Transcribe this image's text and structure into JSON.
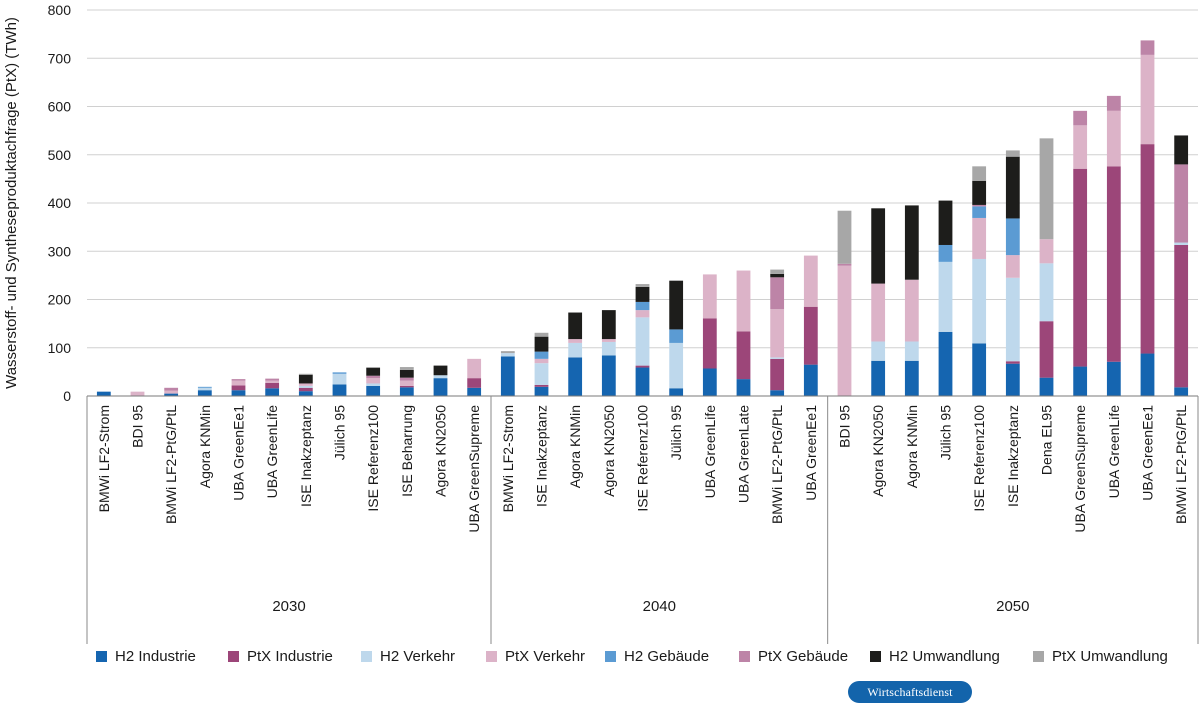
{
  "chart_data": {
    "type": "bar",
    "stacked": true,
    "ylabel": "Wasserstoff- und Syntheseproduktachfrage (PtX) (TWh)",
    "ylim": [
      0,
      800
    ],
    "yticks": [
      0,
      100,
      200,
      300,
      400,
      500,
      600,
      700,
      800
    ],
    "grid": true,
    "legend_position": "bottom",
    "series": [
      {
        "name": "H2 Industrie",
        "color": "#1565b0"
      },
      {
        "name": "PtX Industrie",
        "color": "#9c4679"
      },
      {
        "name": "H2 Verkehr",
        "color": "#bed8ec"
      },
      {
        "name": "PtX Verkehr",
        "color": "#dcb3c8"
      },
      {
        "name": "H2 Gebäude",
        "color": "#5b9bd3"
      },
      {
        "name": "PtX Gebäude",
        "color": "#bd84a7"
      },
      {
        "name": "H2 Umwandlung",
        "color": "#1d1d1b"
      },
      {
        "name": "PtX Umwandlung",
        "color": "#a7a7a7"
      }
    ],
    "groups": [
      {
        "label": "2030",
        "bars": [
          {
            "label": "BMWi LF2-Strom",
            "values": [
              9,
              0,
              0,
              0,
              0,
              0,
              0,
              0
            ]
          },
          {
            "label": "BDI 95",
            "values": [
              0,
              0,
              0,
              9,
              0,
              0,
              0,
              0
            ]
          },
          {
            "label": "BMWi LF2-PtG/PtL",
            "values": [
              5,
              0,
              0,
              6,
              0,
              6,
              0,
              0
            ]
          },
          {
            "label": "Agora KNMin",
            "values": [
              12,
              0,
              5,
              0,
              2,
              0,
              0,
              0
            ]
          },
          {
            "label": "UBA GreenEe1",
            "values": [
              12,
              10,
              0,
              10,
              0,
              3,
              0,
              0
            ]
          },
          {
            "label": "UBA GreenLife",
            "values": [
              16,
              11,
              0,
              5,
              0,
              4,
              0,
              0
            ]
          },
          {
            "label": "ISE Inakzeptanz",
            "values": [
              10,
              7,
              4,
              5,
              0,
              0,
              18,
              2
            ]
          },
          {
            "label": "Jülich 95",
            "values": [
              24,
              0,
              22,
              0,
              3,
              0,
              0,
              0
            ]
          },
          {
            "label": "ISE Referenz100",
            "values": [
              21,
              0,
              5,
              11,
              0,
              5,
              16,
              2
            ]
          },
          {
            "label": "ISE Beharrung",
            "values": [
              18,
              3,
              0,
              11,
              0,
              6,
              16,
              6
            ]
          },
          {
            "label": "Agora KN2050",
            "values": [
              37,
              0,
              6,
              0,
              0,
              0,
              20,
              0
            ]
          },
          {
            "label": "UBA GreenSupreme",
            "values": [
              17,
              20,
              0,
              40,
              0,
              0,
              0,
              0
            ]
          }
        ]
      },
      {
        "label": "2040",
        "bars": [
          {
            "label": "BMWi LF2-Strom",
            "values": [
              82,
              0,
              7,
              0,
              0,
              0,
              0,
              4
            ]
          },
          {
            "label": "ISE Inakzeptanz",
            "values": [
              19,
              4,
              45,
              9,
              15,
              0,
              31,
              8
            ]
          },
          {
            "label": "Agora KNMin",
            "values": [
              80,
              0,
              30,
              8,
              0,
              0,
              55,
              0
            ]
          },
          {
            "label": "Agora KN2050",
            "values": [
              84,
              0,
              28,
              6,
              0,
              0,
              60,
              0
            ]
          },
          {
            "label": "ISE Referenz100",
            "values": [
              59,
              4,
              100,
              15,
              17,
              0,
              31,
              6
            ]
          },
          {
            "label": "Jülich 95",
            "values": [
              16,
              0,
              94,
              0,
              28,
              0,
              101,
              0
            ]
          },
          {
            "label": "UBA GreenLife",
            "values": [
              57,
              104,
              0,
              91,
              0,
              0,
              0,
              0
            ]
          },
          {
            "label": "UBA GreenLate",
            "values": [
              35,
              99,
              0,
              126,
              0,
              0,
              0,
              0
            ]
          },
          {
            "label": "BMWi LF2-PtG/PtL",
            "values": [
              12,
              65,
              3,
              100,
              0,
              66,
              7,
              9
            ]
          },
          {
            "label": "UBA GreenEe1",
            "values": [
              65,
              120,
              0,
              106,
              0,
              0,
              0,
              0
            ]
          }
        ]
      },
      {
        "label": "2050",
        "bars": [
          {
            "label": "BDI 95",
            "values": [
              0,
              0,
              0,
              270,
              0,
              4,
              0,
              110
            ]
          },
          {
            "label": "Agora KN2050",
            "values": [
              73,
              0,
              40,
              120,
              0,
              0,
              156,
              0
            ]
          },
          {
            "label": "Agora KNMin",
            "values": [
              73,
              0,
              40,
              128,
              0,
              0,
              154,
              0
            ]
          },
          {
            "label": "Jülich 95",
            "values": [
              133,
              0,
              145,
              0,
              35,
              0,
              92,
              0
            ]
          },
          {
            "label": "ISE Referenz100",
            "values": [
              109,
              0,
              175,
              85,
              24,
              3,
              50,
              30
            ]
          },
          {
            "label": "ISE Inakzeptanz",
            "values": [
              67,
              5,
              173,
              47,
              76,
              0,
              128,
              13
            ]
          },
          {
            "label": "Dena EL95",
            "values": [
              38,
              117,
              120,
              50,
              0,
              0,
              0,
              209
            ]
          },
          {
            "label": "UBA GreenSupreme",
            "values": [
              61,
              410,
              0,
              90,
              0,
              30,
              0,
              0
            ]
          },
          {
            "label": "UBA GreenLife",
            "values": [
              71,
              405,
              0,
              115,
              0,
              31,
              0,
              0
            ]
          },
          {
            "label": "UBA GreenEe1",
            "values": [
              88,
              434,
              0,
              185,
              0,
              30,
              0,
              0
            ]
          },
          {
            "label": "BMWi LF2-PtG/PtL",
            "values": [
              18,
              295,
              5,
              0,
              0,
              162,
              60,
              0
            ]
          }
        ]
      }
    ]
  },
  "footer": {
    "badge": "Wirtschaftsdienst"
  }
}
